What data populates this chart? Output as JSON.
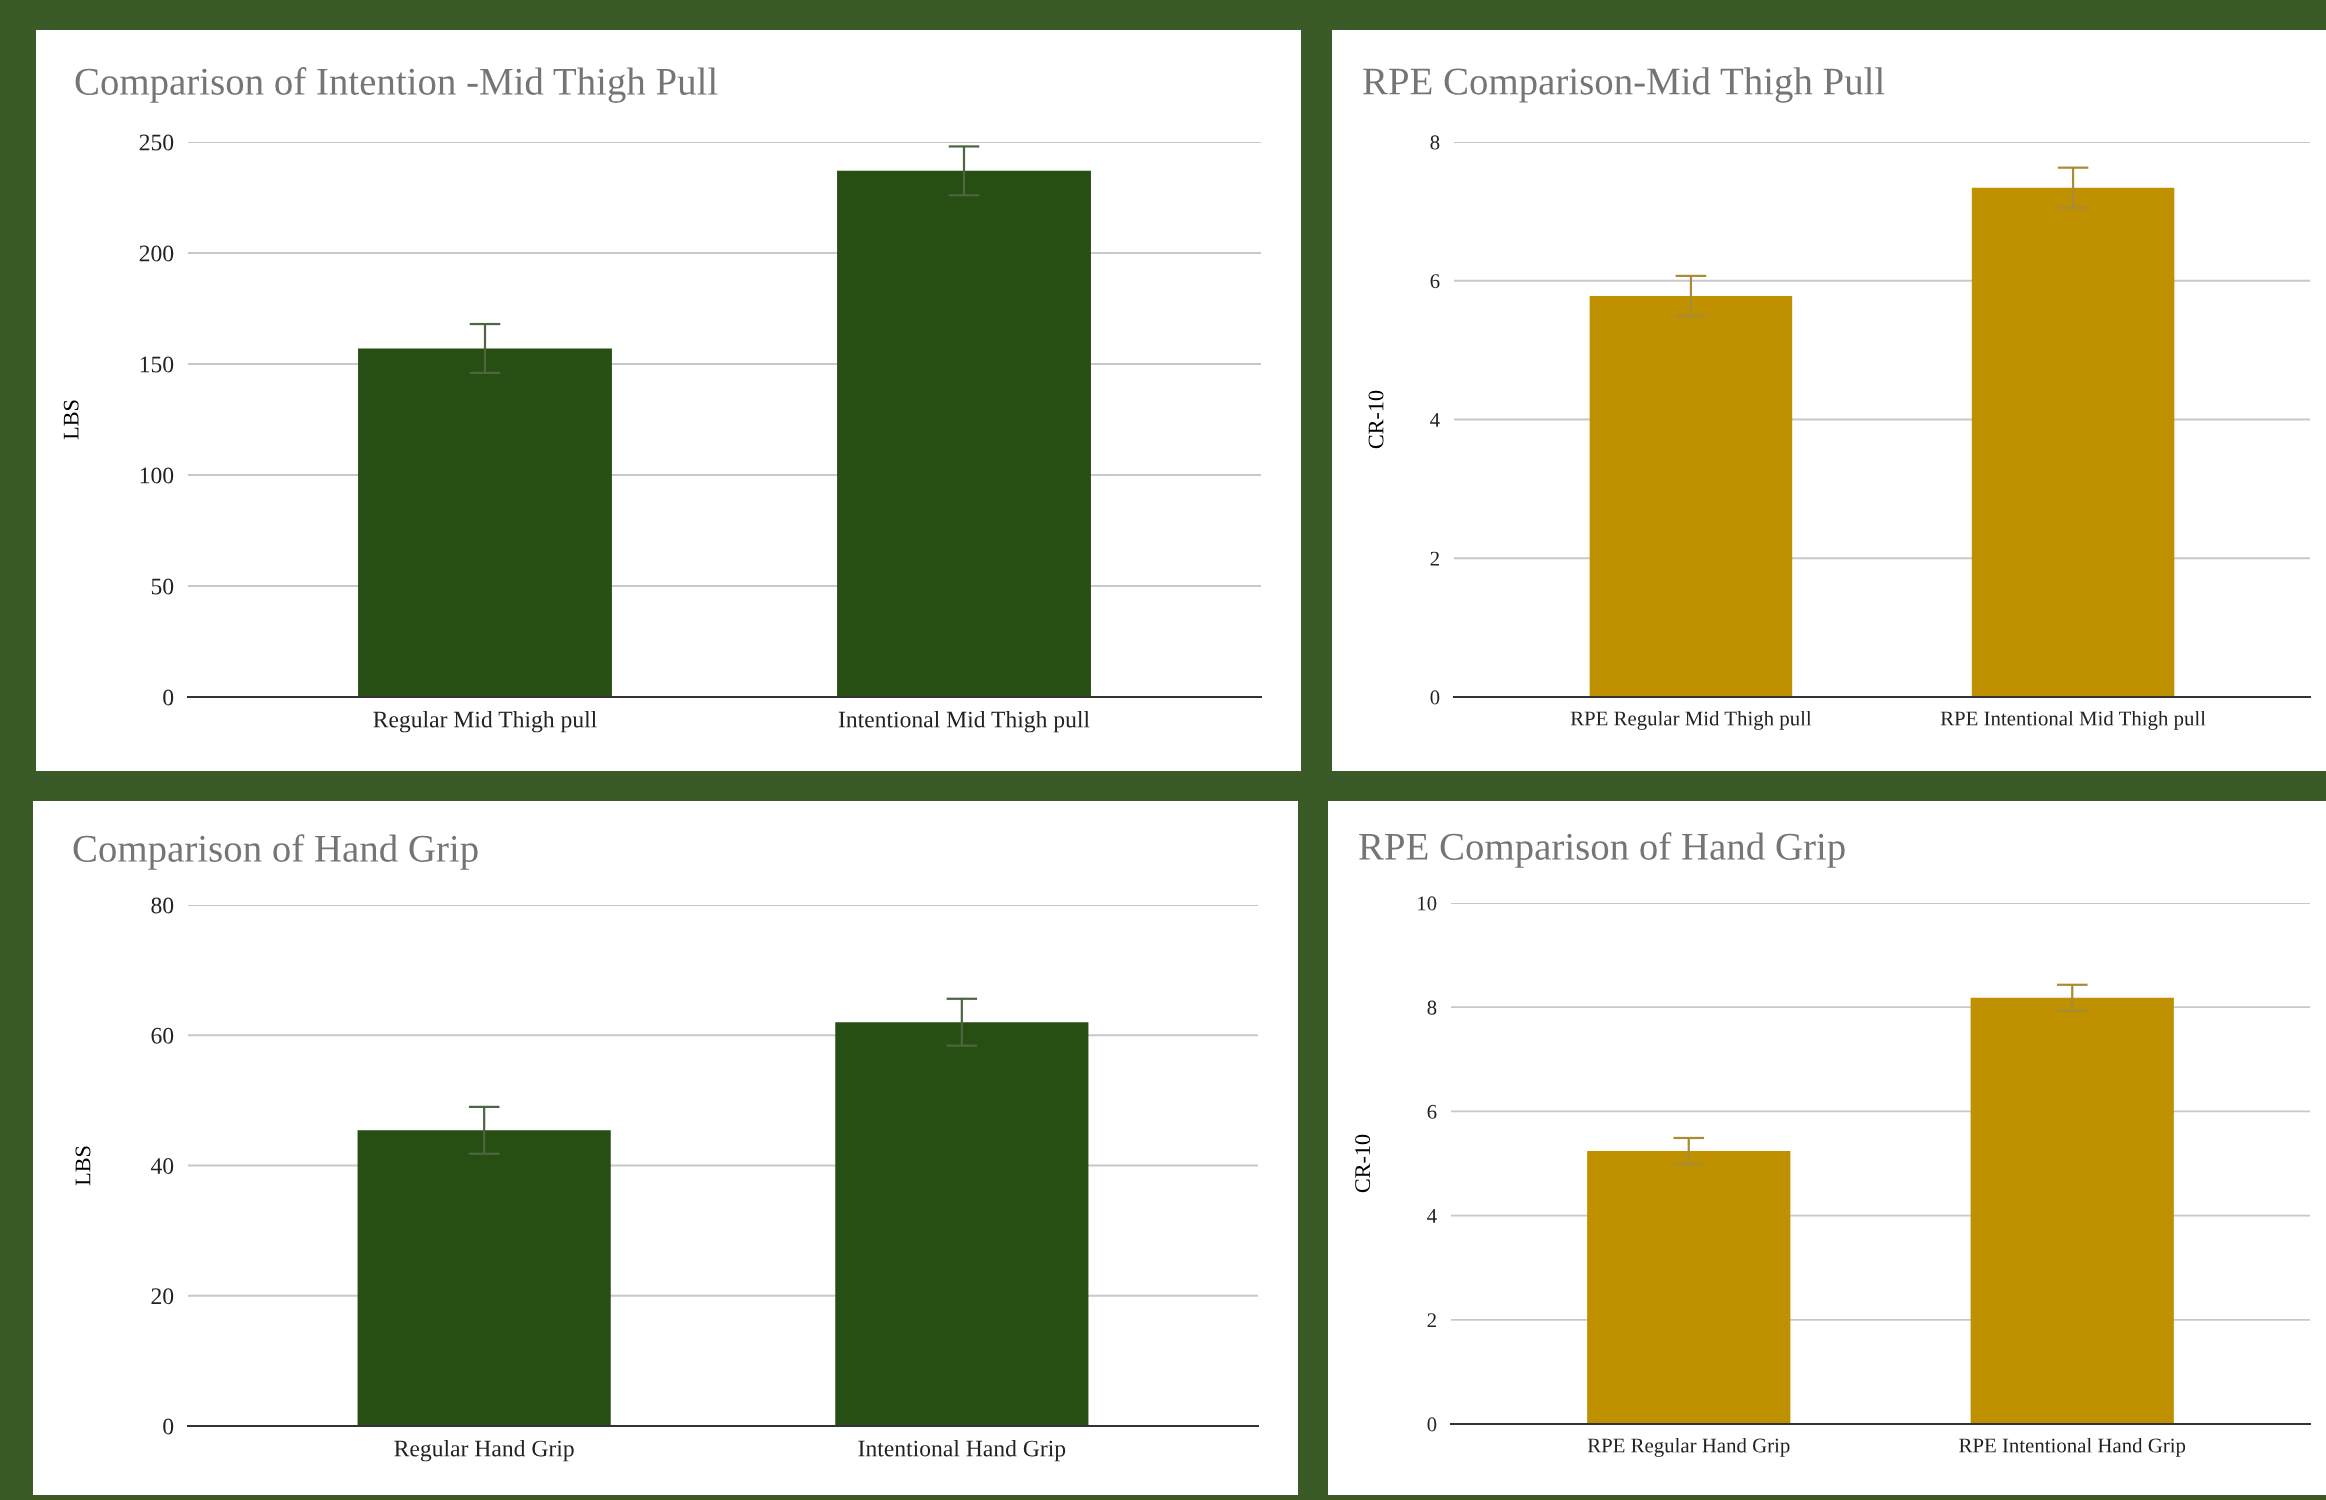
{
  "chart_data": [
    {
      "type": "bar",
      "title": "Comparison of Intention -Mid Thigh Pull",
      "ylabel": "LBS",
      "categories": [
        "Regular Mid Thigh pull",
        "Intentional Mid Thigh pull"
      ],
      "values": [
        157,
        237
      ],
      "errors": [
        11,
        11
      ],
      "color": "#274e13",
      "ylim": [
        0,
        250
      ],
      "yticks": [
        0,
        50,
        100,
        150,
        200,
        250
      ],
      "grid": "y"
    },
    {
      "type": "bar",
      "title": "RPE Comparison-Mid Thigh Pull",
      "ylabel": "CR-10",
      "categories": [
        "RPE Regular Mid Thigh pull",
        "RPE Intentional Mid Thigh pull"
      ],
      "values": [
        5.78,
        7.34
      ],
      "errors": [
        0.29,
        0.29
      ],
      "color": "#bf9000",
      "ylim": [
        0,
        8
      ],
      "yticks": [
        0,
        2,
        4,
        6,
        8
      ],
      "grid": "y"
    },
    {
      "type": "bar",
      "title": "Comparison of Hand Grip",
      "ylabel": "LBS",
      "categories": [
        "Regular Hand Grip",
        "Intentional Hand Grip"
      ],
      "values": [
        45.4,
        62.0
      ],
      "errors": [
        3.6,
        3.6
      ],
      "color": "#274e13",
      "ylim": [
        0,
        80
      ],
      "yticks": [
        0,
        20,
        40,
        60,
        80
      ],
      "grid": "y"
    },
    {
      "type": "bar",
      "title": "RPE Comparison of Hand Grip",
      "ylabel": "CR-10",
      "categories": [
        "RPE Regular Hand Grip",
        "RPE Intentional Hand Grip"
      ],
      "values": [
        5.24,
        8.18
      ],
      "errors": [
        0.25,
        0.25
      ],
      "color": "#bf9000",
      "ylim": [
        0,
        10
      ],
      "yticks": [
        0,
        2,
        4,
        6,
        8,
        10
      ],
      "grid": "y"
    }
  ]
}
